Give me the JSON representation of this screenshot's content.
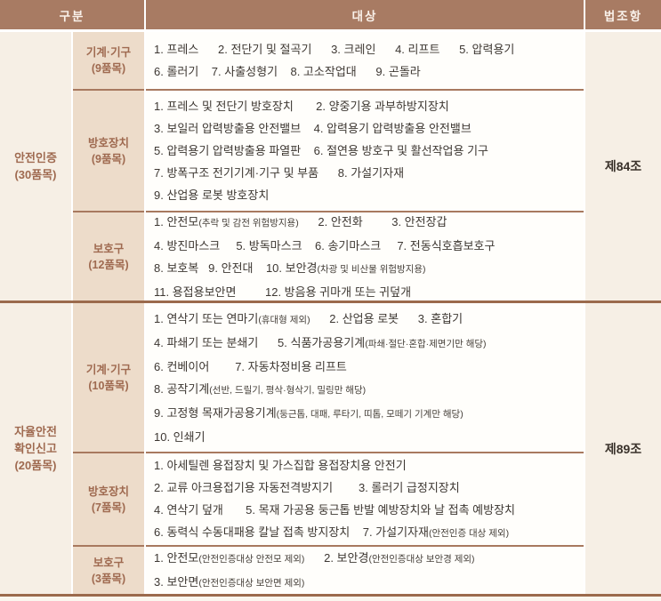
{
  "header": {
    "col_category": "구분",
    "col_target": "대상",
    "col_law": "법조항"
  },
  "colors": {
    "header_bg": "#a87b63",
    "header_text": "#f9f1ea",
    "category_col_bg": "#f6efe5",
    "subcategory_col_bg": "#eddcca",
    "content_bg": "#fffefb",
    "category_text": "#9f6a50",
    "content_text": "#3d3732",
    "divider": "#a8795f",
    "section_divider": "#9b6a4c"
  },
  "sections": [
    {
      "category": [
        "안전인증",
        "(30품목)"
      ],
      "law": "제84조",
      "rows": [
        {
          "sub": [
            "기계·기구",
            "(9품목)"
          ],
          "lines": [
            [
              {
                "t": "1. 프레스      2. 전단기 및 절곡기      3. 크레인      4. 리프트      5. 압력용기"
              }
            ],
            [
              {
                "t": "6. 롤러기    7. 사출성형기    8. 고소작업대      9. 곤돌라"
              }
            ]
          ]
        },
        {
          "sub": [
            "방호장치",
            "(9품목)"
          ],
          "lines": [
            [
              {
                "t": "1. 프레스 및 전단기 방호장치       2. 양중기용 과부하방지장치"
              }
            ],
            [
              {
                "t": "3. 보일러 압력방출용 안전밸브    4. 압력용기 압력방출용 안전밸브"
              }
            ],
            [
              {
                "t": "5. 압력용기 압력방출용 파열판    6. 절연용 방호구 및 활선작업용 기구"
              }
            ],
            [
              {
                "t": "7. 방폭구조 전기기계·기구 및 부품      8. 가설기자재"
              }
            ],
            [
              {
                "t": "9. 산업용 로봇 방호장치"
              }
            ]
          ]
        },
        {
          "sub": [
            "보호구",
            "(12품목)"
          ],
          "lines": [
            [
              {
                "t": "1. 안전모"
              },
              {
                "t": "(추락 및 감전 위험방지용)",
                "s": 1
              },
              {
                "t": "      2. 안전화         3. 안전장갑"
              }
            ],
            [
              {
                "t": "4. 방진마스크     5. 방독마스크    6. 송기마스크     7. 전동식호흡보호구"
              }
            ],
            [
              {
                "t": "8. 보호복   9. 안전대    10. 보안경"
              },
              {
                "t": "(차광 및 비산물 위험방지용)",
                "s": 1
              }
            ],
            [
              {
                "t": "11. 용접용보안면         12. 방음용 귀마개 또는 귀덮개"
              }
            ]
          ]
        }
      ]
    },
    {
      "category": [
        "자율안전",
        "확인신고",
        "(20품목)"
      ],
      "law": "제89조",
      "rows": [
        {
          "sub": [
            "기계·기구",
            "(10품목)"
          ],
          "lines": [
            [
              {
                "t": "1. 연삭기 또는 연마기"
              },
              {
                "t": "(휴대형 제외)",
                "s": 1
              },
              {
                "t": "      2. 산업용 로봇      3. 혼합기"
              }
            ],
            [
              {
                "t": "4. 파쇄기 또는 분쇄기      5. 식품가공용기계"
              },
              {
                "t": "(파쇄·절단·혼합·제면기만 해당)",
                "s": 1
              }
            ],
            [
              {
                "t": "6. 컨베이어        7. 자동차정비용 리프트"
              }
            ],
            [
              {
                "t": "8. 공작기계"
              },
              {
                "t": "(선반, 드릴기, 평삭·형삭기, 밀링만 해당)",
                "s": 1
              }
            ],
            [
              {
                "t": "9. 고정형 목재가공용기계"
              },
              {
                "t": "(둥근톱, 대패, 루타기, 띠톱, 모떼기 기계만 해당)",
                "s": 1
              }
            ],
            [
              {
                "t": "10. 인쇄기"
              }
            ]
          ]
        },
        {
          "sub": [
            "방호장치",
            "(7품목)"
          ],
          "lines": [
            [
              {
                "t": "1. 아세틸렌 용접장치 및 가스집합 용접장치용 안전기"
              }
            ],
            [
              {
                "t": "2. 교류 아크용접기용 자동전격방지기        3. 롤러기 급정지장치"
              }
            ],
            [
              {
                "t": "4. 연삭기 덮개       5. 목재 가공용 둥근톱 반발 예방장치와 날 접촉 예방장치"
              }
            ],
            [
              {
                "t": "6. 동력식 수동대패용 칼날 접촉 방지장치    7. 가설기자재"
              },
              {
                "t": "(안전인증 대상 제외)",
                "s": 1
              }
            ]
          ]
        },
        {
          "sub": [
            "보호구",
            "(3품목)"
          ],
          "lines": [
            [
              {
                "t": "1. 안전모"
              },
              {
                "t": "(안전인증대상 안전모 제외)",
                "s": 1
              },
              {
                "t": "      2. 보안경"
              },
              {
                "t": "(안전인증대상 보안경 제외)",
                "s": 1
              }
            ],
            [
              {
                "t": "3. 보안면"
              },
              {
                "t": "(안전인증대상 보안면 제외)",
                "s": 1
              }
            ]
          ]
        }
      ]
    }
  ]
}
